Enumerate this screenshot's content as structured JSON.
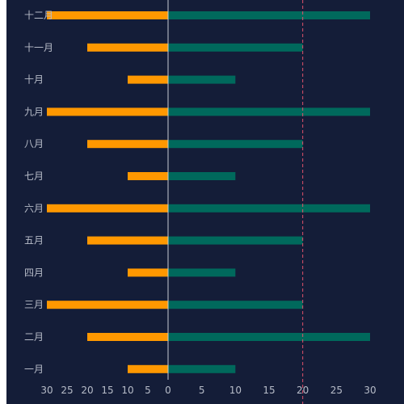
{
  "chart_data": {
    "type": "bar",
    "orientation": "horizontal-butterfly",
    "title": "",
    "categories": [
      "一月",
      "二月",
      "三月",
      "四月",
      "五月",
      "六月",
      "七月",
      "八月",
      "九月",
      "十月",
      "十一月",
      "十二月"
    ],
    "series": [
      {
        "side": "left",
        "color": "#ff9800",
        "values": [
          10,
          20,
          30,
          10,
          20,
          30,
          10,
          20,
          30,
          10,
          20,
          30
        ]
      },
      {
        "side": "right",
        "color": "#00695c",
        "values": [
          10,
          30,
          20,
          10,
          20,
          30,
          10,
          20,
          30,
          10,
          20,
          30
        ]
      }
    ],
    "left_axis": {
      "ticks": [
        30,
        25,
        20,
        15,
        10,
        5,
        0
      ],
      "range": [
        30,
        0
      ]
    },
    "right_axis": {
      "ticks": [
        5,
        10,
        15,
        20,
        25,
        30
      ],
      "range": [
        0,
        30
      ]
    },
    "reference_line": {
      "axis": "right",
      "value": 20,
      "style": "dashed",
      "color": "#e0516b"
    },
    "grid": false
  }
}
